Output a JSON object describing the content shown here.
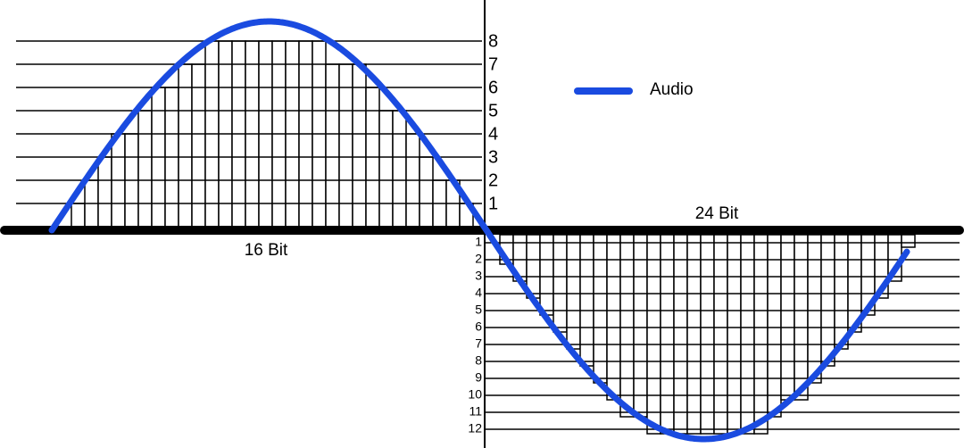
{
  "upper_scale": {
    "label": "16 Bit",
    "levels": [
      1,
      2,
      3,
      4,
      5,
      6,
      7,
      8
    ]
  },
  "lower_scale": {
    "label": "24 Bit",
    "levels": [
      1,
      2,
      3,
      4,
      5,
      6,
      7,
      8,
      9,
      10,
      11,
      12
    ]
  },
  "legend": {
    "label": "Audio"
  }
}
